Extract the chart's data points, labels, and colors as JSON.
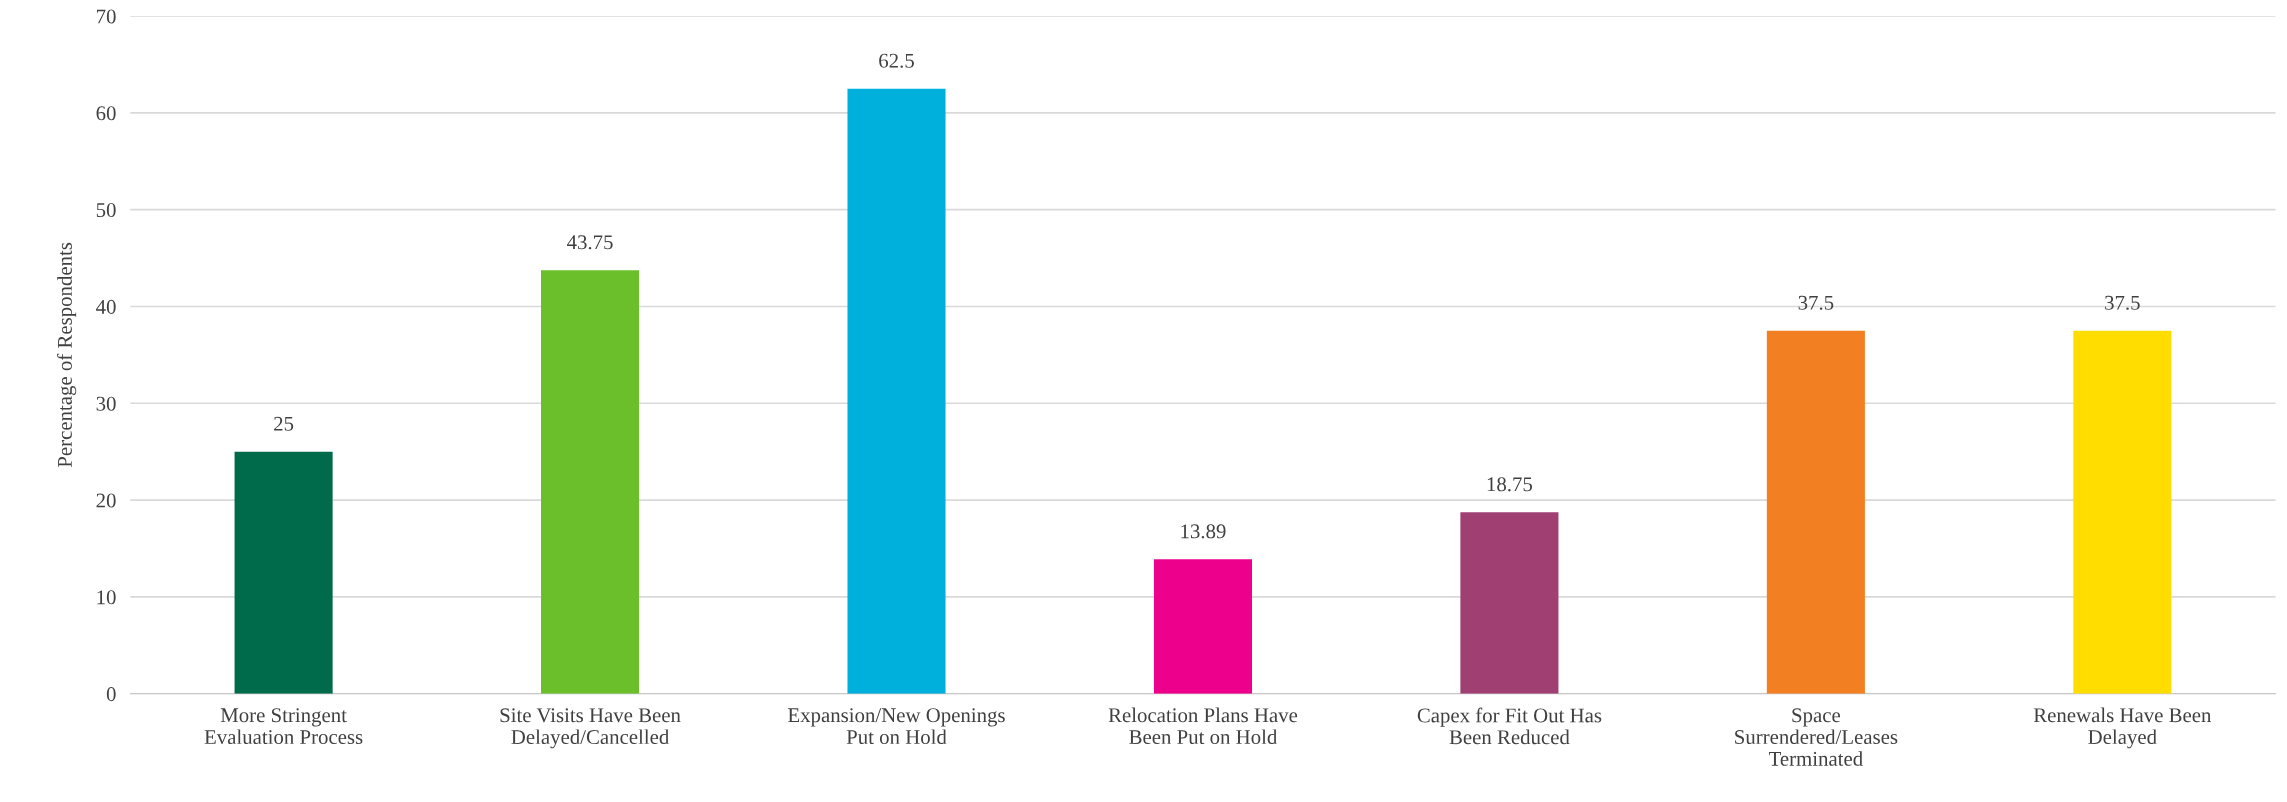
{
  "chart_data": {
    "type": "bar",
    "ylabel": "Percentage of Respondents",
    "categories": [
      "More Stringent\nEvaluation Process",
      "Site Visits Have Been\nDelayed/Cancelled",
      "Expansion/New Openings\nPut on Hold",
      "Relocation Plans Have\nBeen Put on Hold",
      "Capex for Fit Out Has\nBeen Reduced",
      "Space\nSurrendered/Leases\nTerminated",
      "Renewals Have Been\nDelayed"
    ],
    "values": [
      25,
      43.75,
      62.5,
      13.89,
      18.75,
      37.5,
      37.5
    ],
    "colors": [
      "#006b4a",
      "#6abf2a",
      "#00b0dc",
      "#ec008c",
      "#a03f72",
      "#f28022",
      "#ffdd00"
    ],
    "ylim": [
      0,
      70
    ],
    "yticks": [
      0,
      10,
      20,
      30,
      40,
      50,
      60,
      70
    ],
    "grid": "y",
    "data_labels": true
  }
}
